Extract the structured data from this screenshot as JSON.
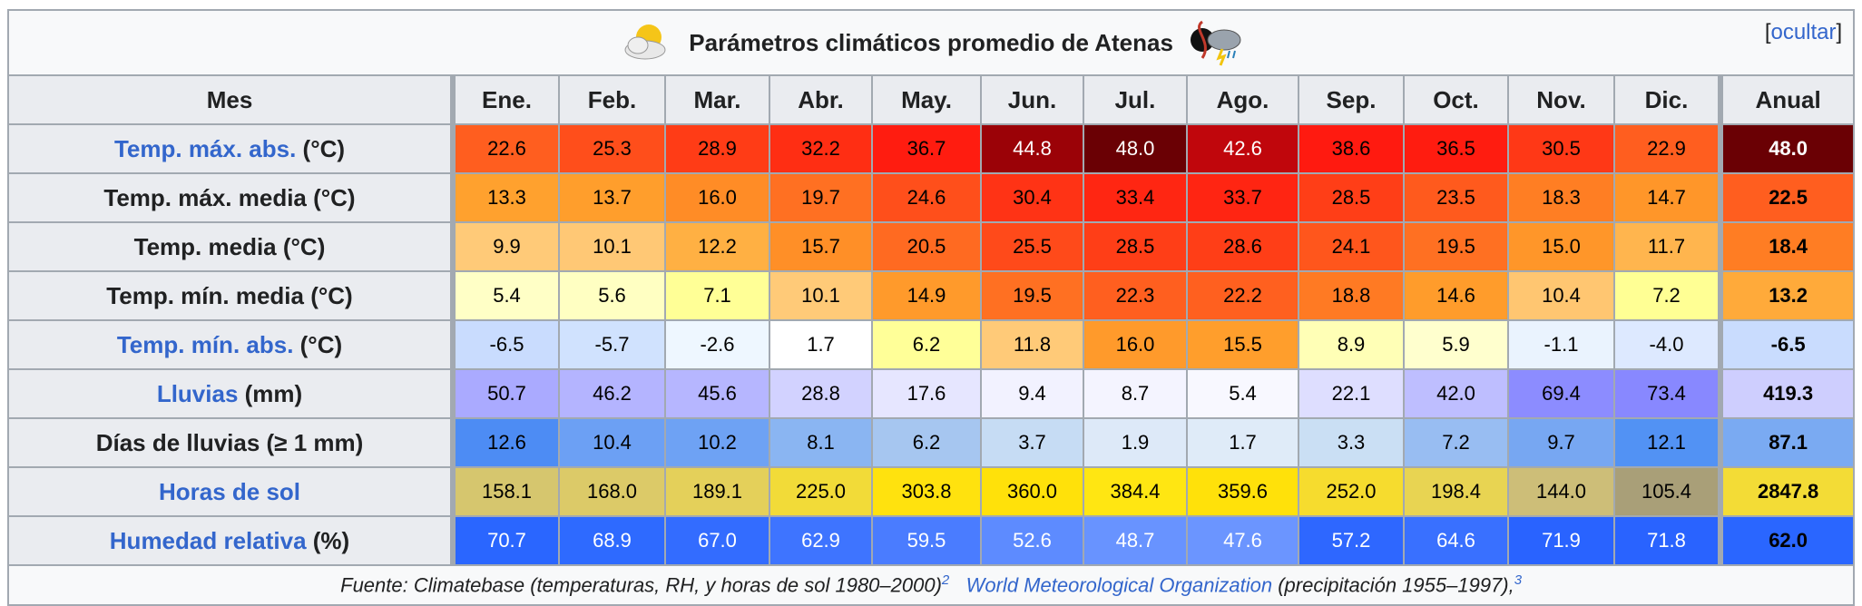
{
  "caption": {
    "title": "Parámetros climáticos promedio de Atenas",
    "toggle_open": "[",
    "toggle_label": "ocultar",
    "toggle_close": "]",
    "left_icon": "sun-cloud-icon",
    "right_icon": "storm-cloud-icon"
  },
  "header": {
    "row_label": "Mes",
    "months": [
      "Ene.",
      "Feb.",
      "Mar.",
      "Abr.",
      "May.",
      "Jun.",
      "Jul.",
      "Ago.",
      "Sep.",
      "Oct.",
      "Nov.",
      "Dic."
    ],
    "annual": "Anual"
  },
  "rows": [
    {
      "label_link": "Temp. máx. abs.",
      "label_rest": " (°C)",
      "values": [
        "22.6",
        "25.3",
        "28.9",
        "32.2",
        "36.7",
        "44.8",
        "48.0",
        "42.6",
        "38.6",
        "36.5",
        "30.5",
        "22.9"
      ],
      "annual": "48.0",
      "bg": [
        "#ff5e1f",
        "#ff4e1b",
        "#ff3c16",
        "#ff2e13",
        "#ff1c10",
        "#9b0207",
        "#6a0004",
        "#c0060c",
        "#ff1a10",
        "#ff1c10",
        "#ff3816",
        "#ff5e1f"
      ],
      "annual_bg": "#6a0004",
      "fg": [
        "#000000",
        "#000000",
        "#000000",
        "#000000",
        "#000000",
        "#ffffff",
        "#ffffff",
        "#ffffff",
        "#000000",
        "#000000",
        "#000000",
        "#000000"
      ],
      "annual_fg": "#ffffff"
    },
    {
      "label_link": "",
      "label_rest": "Temp. máx. media (°C)",
      "values": [
        "13.3",
        "13.7",
        "16.0",
        "19.7",
        "24.6",
        "30.4",
        "33.4",
        "33.7",
        "28.5",
        "23.5",
        "18.3",
        "14.7"
      ],
      "annual": "22.5",
      "bg": [
        "#ffa12e",
        "#ff9e2c",
        "#ff8c26",
        "#ff7022",
        "#ff4f1b",
        "#ff3315",
        "#ff2612",
        "#ff2512",
        "#ff3e17",
        "#ff5a1d",
        "#ff7e23",
        "#ff9629"
      ],
      "annual_bg": "#ff5e1f",
      "fg": [
        "#000000",
        "#000000",
        "#000000",
        "#000000",
        "#000000",
        "#000000",
        "#000000",
        "#000000",
        "#000000",
        "#000000",
        "#000000",
        "#000000"
      ],
      "annual_fg": "#000000"
    },
    {
      "label_link": "",
      "label_rest": "Temp. media (°C)",
      "values": [
        "9.9",
        "10.1",
        "12.2",
        "15.7",
        "20.5",
        "25.5",
        "28.5",
        "28.6",
        "24.1",
        "19.5",
        "15.0",
        "11.7"
      ],
      "annual": "18.4",
      "bg": [
        "#ffca78",
        "#ffc875",
        "#ffb043",
        "#ff8f27",
        "#ff6a21",
        "#ff4a1a",
        "#ff3e17",
        "#ff3e17",
        "#ff561c",
        "#ff7022",
        "#ff9629",
        "#ffb54e"
      ],
      "annual_bg": "#ff7d23",
      "fg": [
        "#000000",
        "#000000",
        "#000000",
        "#000000",
        "#000000",
        "#000000",
        "#000000",
        "#000000",
        "#000000",
        "#000000",
        "#000000",
        "#000000"
      ],
      "annual_fg": "#000000"
    },
    {
      "label_link": "",
      "label_rest": "Temp. mín. media (°C)",
      "values": [
        "5.4",
        "5.6",
        "7.1",
        "10.1",
        "14.9",
        "19.5",
        "22.3",
        "22.2",
        "18.8",
        "14.6",
        "10.4",
        "7.2"
      ],
      "annual": "13.2",
      "bg": [
        "#ffffc6",
        "#ffffc2",
        "#ffff96",
        "#ffca78",
        "#ff9a2b",
        "#ff7022",
        "#ff5f1f",
        "#ff601f",
        "#ff7a23",
        "#ff9c2b",
        "#ffc671",
        "#ffff94"
      ],
      "annual_bg": "#ffaa3a",
      "fg": [
        "#000000",
        "#000000",
        "#000000",
        "#000000",
        "#000000",
        "#000000",
        "#000000",
        "#000000",
        "#000000",
        "#000000",
        "#000000",
        "#000000"
      ],
      "annual_fg": "#000000"
    },
    {
      "label_link": "Temp. mín. abs.",
      "label_rest": " (°C)",
      "values": [
        "-6.5",
        "-5.7",
        "-2.6",
        "1.7",
        "6.2",
        "11.8",
        "16.0",
        "15.5",
        "8.9",
        "5.9",
        "-1.1",
        "-4.0"
      ],
      "annual": "-6.5",
      "bg": [
        "#c9dcfe",
        "#d0e2fe",
        "#eef7ff",
        "#ffffff",
        "#ffff98",
        "#ffca78",
        "#ff9a2b",
        "#ff9e2c",
        "#ffffb6",
        "#ffffce",
        "#eaf3fe",
        "#dde9ff"
      ],
      "annual_bg": "#c9dcfe",
      "fg": [
        "#000000",
        "#000000",
        "#000000",
        "#000000",
        "#000000",
        "#000000",
        "#000000",
        "#000000",
        "#000000",
        "#000000",
        "#000000",
        "#000000"
      ],
      "annual_fg": "#000000"
    },
    {
      "label_link": "Lluvias",
      "label_rest": " (mm)",
      "values": [
        "50.7",
        "46.2",
        "45.6",
        "28.8",
        "17.6",
        "9.4",
        "8.7",
        "5.4",
        "22.1",
        "42.0",
        "69.4",
        "73.4"
      ],
      "annual": "419.3",
      "bg": [
        "#aaaaff",
        "#b4b4ff",
        "#b6b6ff",
        "#d2d2ff",
        "#e6e6ff",
        "#f2f2ff",
        "#f4f4ff",
        "#f8f8ff",
        "#dedeff",
        "#bebeff",
        "#8c8cff",
        "#8888ff"
      ],
      "annual_bg": "#cecefe",
      "fg": [
        "#000000",
        "#000000",
        "#000000",
        "#000000",
        "#000000",
        "#000000",
        "#000000",
        "#000000",
        "#000000",
        "#000000",
        "#000000",
        "#000000"
      ],
      "annual_fg": "#000000"
    },
    {
      "label_link": "",
      "label_rest": "Días de lluvias (≥ 1 mm)",
      "values": [
        "12.6",
        "10.4",
        "10.2",
        "8.1",
        "6.2",
        "3.7",
        "1.9",
        "1.7",
        "3.3",
        "7.2",
        "9.7",
        "12.1"
      ],
      "annual": "87.1",
      "bg": [
        "#4d8cf4",
        "#6ca0f4",
        "#6ea2f4",
        "#8ab5f2",
        "#a6c6f0",
        "#c6dcf4",
        "#dde9f8",
        "#dfebf8",
        "#cadff4",
        "#98bdf2",
        "#77a7f2",
        "#5292f4"
      ],
      "annual_bg": "#7aaaf2",
      "fg": [
        "#000000",
        "#000000",
        "#000000",
        "#000000",
        "#000000",
        "#000000",
        "#000000",
        "#000000",
        "#000000",
        "#000000",
        "#000000",
        "#000000"
      ],
      "annual_fg": "#000000"
    },
    {
      "label_link": "Horas de sol",
      "label_rest": "",
      "values": [
        "158.1",
        "168.0",
        "189.1",
        "225.0",
        "303.8",
        "360.0",
        "384.4",
        "359.6",
        "252.0",
        "198.4",
        "144.0",
        "105.4"
      ],
      "annual": "2847.8",
      "bg": [
        "#d6c66e",
        "#dcca68",
        "#e4d05a",
        "#f2db38",
        "#ffe20e",
        "#ffe10a",
        "#ffe612",
        "#ffe10a",
        "#f6dc2e",
        "#e8d452",
        "#cdbe78",
        "#a99f78"
      ],
      "annual_bg": "#f3dc36",
      "fg": [
        "#000000",
        "#000000",
        "#000000",
        "#000000",
        "#000000",
        "#000000",
        "#000000",
        "#000000",
        "#000000",
        "#000000",
        "#000000",
        "#000000"
      ],
      "annual_fg": "#000000"
    },
    {
      "label_link": "Humedad relativa",
      "label_rest": " (%)",
      "values": [
        "70.7",
        "68.9",
        "67.0",
        "62.9",
        "59.5",
        "52.6",
        "48.7",
        "47.6",
        "57.2",
        "64.6",
        "71.9",
        "71.8"
      ],
      "annual": "62.0",
      "bg": [
        "#2a66ff",
        "#2e6aff",
        "#336cff",
        "#3e74ff",
        "#4a7cff",
        "#5d8bff",
        "#6893ff",
        "#6b95ff",
        "#2e67ff",
        "#3970ff",
        "#2963ff",
        "#2963ff"
      ],
      "annual_bg": "#2a66ff",
      "fg": [
        "#ffffff",
        "#ffffff",
        "#ffffff",
        "#ffffff",
        "#ffffff",
        "#ffffff",
        "#ffffff",
        "#ffffff",
        "#ffffff",
        "#ffffff",
        "#ffffff",
        "#ffffff"
      ],
      "annual_fg": "#000000"
    }
  ],
  "footer": {
    "source1": "Fuente: Climatebase (temperaturas, RH, y horas de sol 1980–2000)",
    "ref1": "2",
    "link_wmo": "World Meteorological Organization",
    "source2": " (precipitación 1955–1997),",
    "ref2": "3"
  }
}
